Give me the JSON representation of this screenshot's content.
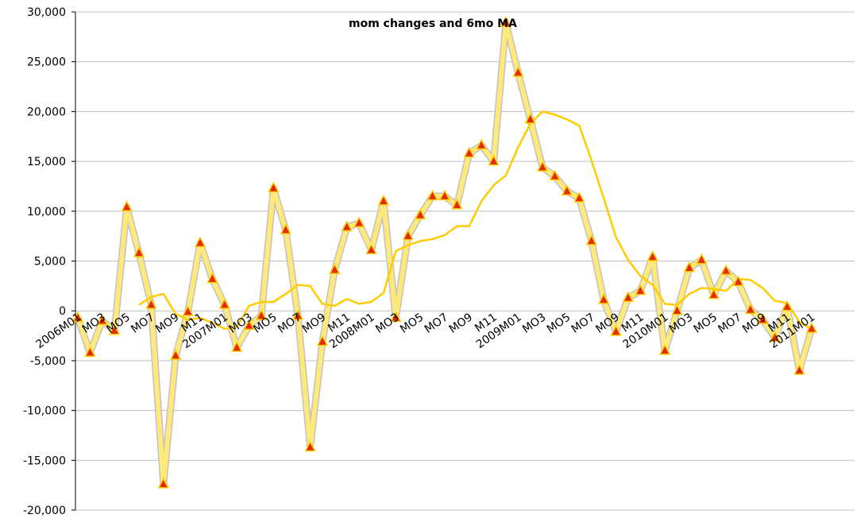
{
  "chart_data": {
    "type": "line",
    "title": "mom changes and 6mo MA",
    "xlabel": "",
    "ylabel": "",
    "ylim": [
      -20000,
      30000
    ],
    "yticks": [
      -20000,
      -15000,
      -10000,
      -5000,
      0,
      5000,
      10000,
      15000,
      20000,
      25000,
      30000
    ],
    "ytick_labels": [
      "-20,000",
      "-15,000",
      "-10,000",
      "-5,000",
      "0",
      "5,000",
      "10,000",
      "15,000",
      "20,000",
      "25,000",
      "30,000"
    ],
    "grid": true,
    "legend": "none",
    "x_tick_labels": [
      {
        "index": 0,
        "label": "2006M01"
      },
      {
        "index": 2,
        "label": "MO3"
      },
      {
        "index": 4,
        "label": "MO5"
      },
      {
        "index": 6,
        "label": "MO7"
      },
      {
        "index": 8,
        "label": "MO9"
      },
      {
        "index": 10,
        "label": "M11"
      },
      {
        "index": 12,
        "label": "2007M01"
      },
      {
        "index": 14,
        "label": "MO3"
      },
      {
        "index": 16,
        "label": "MO5"
      },
      {
        "index": 18,
        "label": "MO7"
      },
      {
        "index": 20,
        "label": "MO9"
      },
      {
        "index": 22,
        "label": "M11"
      },
      {
        "index": 24,
        "label": "2008M01"
      },
      {
        "index": 26,
        "label": "MO3"
      },
      {
        "index": 28,
        "label": "MO5"
      },
      {
        "index": 30,
        "label": "MO7"
      },
      {
        "index": 32,
        "label": "MO9"
      },
      {
        "index": 34,
        "label": "M11"
      },
      {
        "index": 36,
        "label": "2009M01"
      },
      {
        "index": 38,
        "label": "MO3"
      },
      {
        "index": 40,
        "label": "MO5"
      },
      {
        "index": 42,
        "label": "MO7"
      },
      {
        "index": 44,
        "label": "MO9"
      },
      {
        "index": 46,
        "label": "M11"
      },
      {
        "index": 48,
        "label": "2010M01"
      },
      {
        "index": 50,
        "label": "MO3"
      },
      {
        "index": 52,
        "label": "MO5"
      },
      {
        "index": 54,
        "label": "MO7"
      },
      {
        "index": 56,
        "label": "MO9"
      },
      {
        "index": 58,
        "label": "M11"
      },
      {
        "index": 60,
        "label": "2011M01"
      }
    ],
    "series": [
      {
        "values": [
          -700,
          -4200,
          -1000,
          -2000,
          10400,
          5800,
          600,
          -17400,
          -4500,
          -100,
          6800,
          3200,
          600,
          -3700,
          -1500,
          -500,
          12300,
          8100,
          -500,
          -13700,
          -3100,
          4100,
          8400,
          8800,
          6100,
          11000,
          -700,
          7500,
          9600,
          11500,
          11500,
          10600,
          15800,
          16600,
          15000,
          28900,
          23900,
          19200,
          14400,
          13500,
          12000,
          11300,
          7000,
          1100,
          -2100,
          1300,
          2000,
          5400,
          -4000,
          0,
          4300,
          5100,
          1600,
          4000,
          2900,
          100,
          -900,
          -2700,
          400,
          -6000,
          -1800
        ],
        "color": "#ffe97a",
        "marker": "triangle",
        "marker_color": "#e32a00"
      },
      {
        "values": [
          null,
          null,
          null,
          null,
          null,
          600,
          1400,
          1700,
          -300,
          -900,
          -700,
          -1200,
          -1800,
          -1600,
          500,
          900,
          900,
          1700,
          2600,
          2500,
          700,
          500,
          1200,
          700,
          900,
          1800,
          6000,
          6600,
          7000,
          7200,
          7600,
          8500,
          8500,
          11000,
          12600,
          13600,
          16400,
          18800,
          20000,
          19700,
          19200,
          18600,
          15100,
          11300,
          7400,
          5100,
          3500,
          2600,
          700,
          600,
          1700,
          2300,
          2200,
          2000,
          3200,
          3100,
          2300,
          1000,
          800,
          -1100,
          -1900
        ],
        "color": "#ffcc00",
        "marker": "none"
      }
    ]
  }
}
